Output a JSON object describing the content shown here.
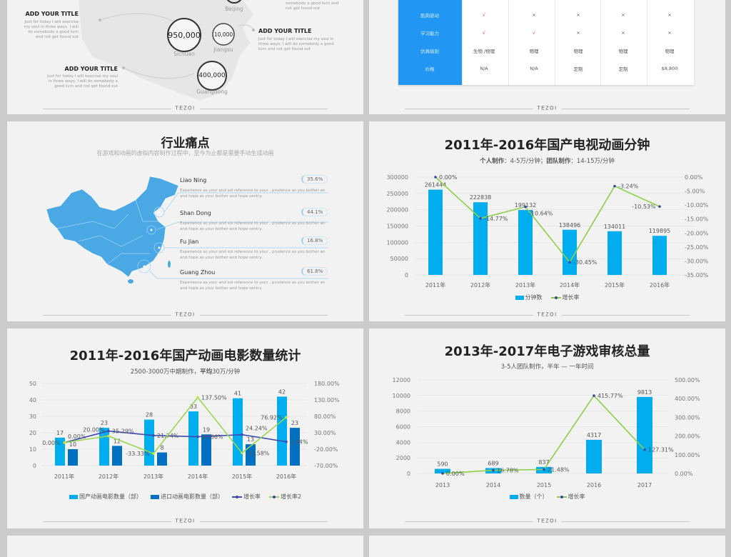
{
  "footer_logo": "TEZOI",
  "slide_map_gray": {
    "circles": [
      {
        "value": "950,000",
        "label": "Sichuan"
      },
      {
        "value": "10,000",
        "label": "Jiangsu"
      },
      {
        "value": "400,000",
        "label": "Guangdong"
      },
      {
        "value": "",
        "label": "Beijing"
      }
    ],
    "blocks": [
      {
        "title": "ADD YOUR TITLE",
        "body": "Just for today I will exercise my soul in three ways. I will do somebody a good turn and not get found out"
      },
      {
        "title": "ADD YOUR TITLE",
        "body": "Just for today I will exercise my soul in three ways. I will do somebody a good turn and not get found out"
      },
      {
        "title": "ADD YOUR TITLE",
        "body": "Just for today I will exercise my soul in three ways. I will do somebody a good turn and not get found out"
      }
    ],
    "top_partial_body": "somebody a good turn and not get found out"
  },
  "slide_table": {
    "row_labels": [
      "肌肉驱动",
      "学习能力",
      "仿真级别",
      "价格"
    ],
    "rows": [
      [
        "√",
        "×",
        "×",
        "×",
        "×"
      ],
      [
        "√",
        "√",
        "×",
        "×",
        "×"
      ],
      [
        "生物 /物理",
        "物理",
        "物理",
        "物理",
        "物理"
      ],
      [
        "N/A",
        "N/A",
        "定制",
        "定制",
        "$8,800"
      ]
    ],
    "check_color": "#e53935",
    "header_color": "#2196f3"
  },
  "slide_pain": {
    "title": "行业痛点",
    "subtitle": "在游戏和动画的虚拟内容制作过程中，至今为止都是需要手动生成动画",
    "map_color": "#4aa8e4",
    "items": [
      {
        "name": "Liao Ning",
        "percent": "35.6%",
        "desc": "Experience as your and sol reference to your , prudence as you bother an and hope as your bother and hope sentry."
      },
      {
        "name": "Shan Dong",
        "percent": "44.1%",
        "desc": "Experience as your and sol reference to your , prudence as you bother an and hope as your bother and hope sentry."
      },
      {
        "name": "Fu Jian",
        "percent": "16.8%",
        "desc": "Experience as your and sol reference to your , prudence as you bother an and hope as your bother and hope sentry."
      },
      {
        "name": "Guang Zhou",
        "percent": "61.8%",
        "desc": "Experience as your and sol reference to your , prudence as you bother an and hope as your bother and hope sentry."
      }
    ]
  },
  "chart_data": [
    {
      "type": "bar",
      "title": "2011年-2016年国产电视动画分钟",
      "subtitle_bold1": "个人制作",
      "subtitle_rest1": "：4-5万/分钟；",
      "subtitle_bold2": "团队制作",
      "subtitle_rest2": "：14-15万/分钟",
      "categories": [
        "2011年",
        "2012年",
        "2013年",
        "2014年",
        "2015年",
        "2016年"
      ],
      "series": [
        {
          "name": "分钟数",
          "kind": "bar",
          "axis": "left",
          "color": "#00adef",
          "values": [
            261444,
            222838,
            199132,
            138496,
            134011,
            119895
          ],
          "labels": [
            "261444",
            "222838",
            "199132",
            "138496",
            "134011",
            "119895"
          ]
        },
        {
          "name": "增长率",
          "kind": "line",
          "axis": "right",
          "color": "#8cd04a",
          "marker_color": "#3b4aa8",
          "values": [
            0,
            -14.77,
            -10.64,
            -30.45,
            -3.24,
            -10.53
          ],
          "labels": [
            "0.00%",
            "-14.77%",
            "-10.64%",
            "-30.45%",
            "-3.24%",
            "-10.53%"
          ]
        }
      ],
      "ylim": [
        0,
        300000
      ],
      "yticks": [
        "0",
        "50000",
        "100000",
        "150000",
        "200000",
        "250000",
        "300000"
      ],
      "y2lim": [
        -35,
        0
      ],
      "y2ticks": [
        "-35.00%",
        "-30.00%",
        "-25.00%",
        "-20.00%",
        "-15.00%",
        "-10.00%",
        "-5.00%",
        "0.00%"
      ],
      "grid": true,
      "legend": "bottom"
    },
    {
      "type": "bar",
      "title": "2011年-2016年国产动画电影数量统计",
      "subtitle_rest1": "2500-3000万中期制作，",
      "subtitle_bold1": "平均",
      "subtitle_rest2": "30万/分钟",
      "categories": [
        "2011年",
        "2012年",
        "2013年",
        "2014年",
        "2015年",
        "2016年"
      ],
      "series": [
        {
          "name": "国产动画电影数量（部）",
          "kind": "bar",
          "axis": "left",
          "color": "#00adef",
          "values": [
            17,
            23,
            28,
            33,
            41,
            42
          ],
          "labels": [
            "17",
            "23",
            "28",
            "33",
            "41",
            "42"
          ]
        },
        {
          "name": "进口动画电影数量（部）",
          "kind": "bar",
          "axis": "left",
          "color": "#0070c0",
          "values": [
            10,
            12,
            8,
            19,
            13,
            23
          ],
          "labels": [
            "10",
            "12",
            "8",
            "19",
            "13",
            "23"
          ]
        },
        {
          "name": "增长率",
          "kind": "line",
          "axis": "right",
          "color": "#3f4bb5",
          "marker_color": "#3f4bb5",
          "values": [
            0,
            35.29,
            21.74,
            17.86,
            24.24,
            2.44
          ],
          "labels": [
            "0.00%",
            "35.29%",
            "21.74%",
            "17.86%",
            "24.24%",
            "2.44%"
          ]
        },
        {
          "name": "增长率2",
          "kind": "line",
          "axis": "right",
          "color": "#9bd653",
          "marker_color": "#c7e63a",
          "values": [
            0,
            20.0,
            -33.33,
            137.5,
            -31.58,
            76.92
          ],
          "labels": [
            "0.00%",
            "20.00%",
            "-33.33%",
            "137.50%",
            "-31.58%",
            "76.92%"
          ]
        }
      ],
      "ylim": [
        0,
        50
      ],
      "yticks": [
        "0",
        "10",
        "20",
        "30",
        "40",
        "50"
      ],
      "y2lim": [
        -70,
        180
      ],
      "y2ticks": [
        "-70.00%",
        "-20.00%",
        "30.00%",
        "80.00%",
        "130.00%",
        "180.00%"
      ],
      "grid": true,
      "legend": "bottom"
    },
    {
      "type": "bar",
      "title": "2013年-2017年电子游戏审核总量",
      "subtitle_rest1": "3-5人团队制作，半年 — 一年时间",
      "categories": [
        "2013",
        "2014",
        "2015",
        "2016",
        "2017"
      ],
      "series": [
        {
          "name": "数量（个）",
          "kind": "bar",
          "axis": "left",
          "color": "#00adef",
          "values": [
            590,
            689,
            837,
            4317,
            9813
          ],
          "labels": [
            "590",
            "689",
            "837",
            "4317",
            "9813"
          ]
        },
        {
          "name": "增长率",
          "kind": "line",
          "axis": "right",
          "color": "#8cd04a",
          "marker_color": "#3b4aa8",
          "values": [
            0,
            16.78,
            21.48,
            415.77,
            127.31
          ],
          "labels": [
            "0.00%",
            "16.78%",
            "21.48%",
            "415.77%",
            "127.31%"
          ]
        }
      ],
      "ylim": [
        0,
        12000
      ],
      "yticks": [
        "0",
        "2000",
        "4000",
        "6000",
        "8000",
        "10000",
        "12000"
      ],
      "y2lim": [
        0,
        500
      ],
      "y2ticks": [
        "0.00%",
        "100.00%",
        "200.00%",
        "300.00%",
        "400.00%",
        "500.00%"
      ],
      "grid": true,
      "legend": "bottom"
    }
  ]
}
